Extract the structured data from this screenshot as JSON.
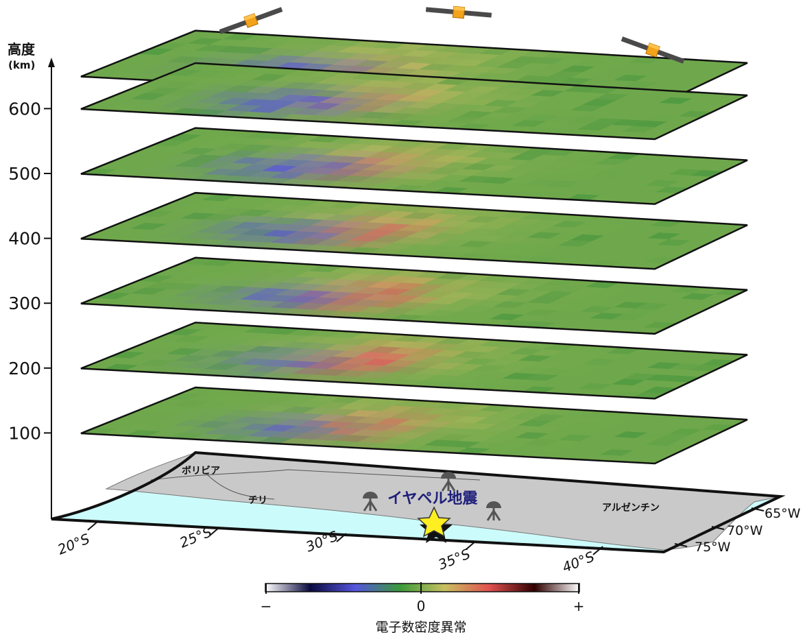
{
  "altitude_axis": {
    "title": "高度",
    "unit": "(km)",
    "ticks": [
      "100",
      "200",
      "300",
      "400",
      "500",
      "600"
    ]
  },
  "layers_km": [
    100,
    200,
    300,
    400,
    500,
    600,
    650
  ],
  "map": {
    "latitude_labels": [
      "20°S",
      "25°S",
      "30°S",
      "35°S",
      "40°S"
    ],
    "longitude_labels": [
      "65°W",
      "70°W",
      "75°W"
    ],
    "countries": {
      "bolivia": "ボリビア",
      "chile": "チリ",
      "argentina": "アルゼンチン"
    },
    "earthquake_label": "イヤペル地震",
    "gnss_station_count": 3
  },
  "colorbar": {
    "min_label": "−",
    "mid_label": "0",
    "max_label": "+",
    "title": "電子数密度異常",
    "stops": [
      "#ffffff",
      "#0a0a40",
      "#5555dd",
      "#3a9a3a",
      "#c8c060",
      "#e05050",
      "#300000",
      "#ffffff"
    ]
  },
  "colors": {
    "ocean": "#ccfbfb",
    "land": "#c9c9c9",
    "layer_base": "#6fa84c",
    "negative_anomaly": "#5555dd",
    "positive_anomaly": "#e45a5a",
    "epicenter_star": "#ffee22"
  },
  "satellite_count": 3
}
